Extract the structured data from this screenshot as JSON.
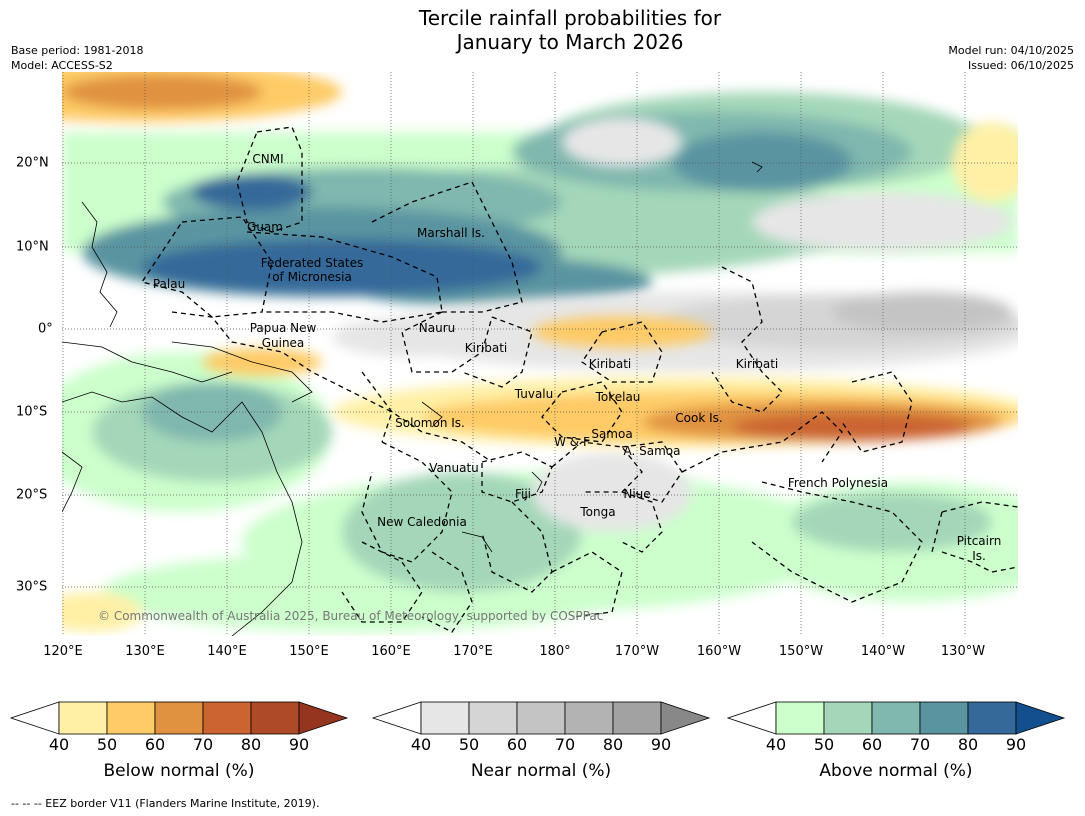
{
  "title_line1": "Tercile rainfall probabilities for",
  "title_line2": "January to March 2026",
  "base_period": "Base period: 1981-2018",
  "model": "Model: ACCESS-S2",
  "model_run": "Model run: 04/10/2025",
  "issued": "Issued: 06/10/2025",
  "map": {
    "lon_labels": [
      "120°E",
      "130°E",
      "140°E",
      "150°E",
      "160°E",
      "170°E",
      "180°",
      "170°W",
      "160°W",
      "150°W",
      "140°W",
      "130°W"
    ],
    "lat_labels": [
      "20°N",
      "10°N",
      "0°",
      "10°S",
      "20°S",
      "30°S"
    ],
    "places": [
      "CNMI",
      "Guam",
      "Marshall Is.",
      "Palau",
      "Federated States",
      "of Micronesia",
      "Papua New",
      "Guinea",
      "Nauru",
      "Kiribati",
      "Kiribati",
      "Kiribati",
      "Tuvalu",
      "Tokelau",
      "Solomon Is.",
      "Samoa",
      "W & F",
      "A. Samoa",
      "Cook Is.",
      "Vanuatu",
      "Fiji",
      "Niue",
      "Tonga",
      "French Polynesia",
      "New Caledonia",
      "Pitcairn",
      "Is."
    ],
    "copyright": "© Commonwealth of Australia 2025, Bureau of Meteorology, supported by COSPPac"
  },
  "colorbars": [
    {
      "title": "Below normal (%)",
      "ticks": [
        "40",
        "50",
        "60",
        "70",
        "80",
        "90"
      ],
      "colors": [
        "#ffffff",
        "#fff0a6",
        "#fecb66",
        "#e09241",
        "#cb6431",
        "#ae4a27",
        "#953520"
      ]
    },
    {
      "title": "Near normal (%)",
      "ticks": [
        "40",
        "50",
        "60",
        "70",
        "80",
        "90"
      ],
      "colors": [
        "#ffffff",
        "#e6e6e6",
        "#d5d5d5",
        "#c4c4c4",
        "#b3b3b3",
        "#a2a2a2",
        "#888888"
      ]
    },
    {
      "title": "Above normal (%)",
      "ticks": [
        "40",
        "50",
        "60",
        "70",
        "80",
        "90"
      ],
      "colors": [
        "#ffffff",
        "#ccffcc",
        "#a4d7b9",
        "#80b7ae",
        "#5a94a1",
        "#34699a",
        "#134f8f"
      ]
    }
  ],
  "footer": "--  --  -- EEZ border V11 (Flanders Marine Institute, 2019)."
}
